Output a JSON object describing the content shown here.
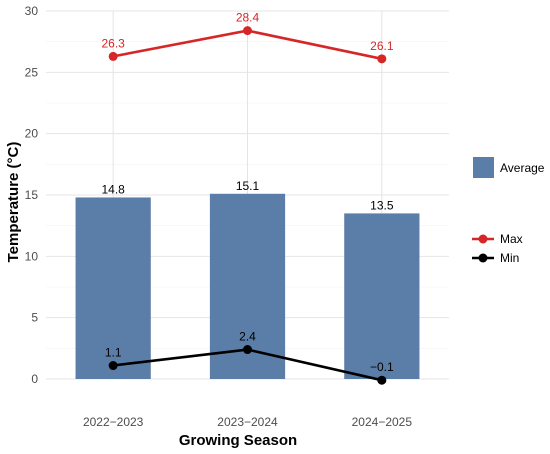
{
  "chart_data": {
    "type": "bar",
    "xlabel": "Growing Season",
    "ylabel": "Temperature (°C)",
    "ylim": [
      0,
      30
    ],
    "yticks": [
      0,
      5,
      10,
      15,
      20,
      25,
      30
    ],
    "grid": true,
    "legend_position": "right",
    "categories": [
      "2022−2023",
      "2023−2024",
      "2024−2025"
    ],
    "series": [
      {
        "name": "Average",
        "type": "bar",
        "color": "#5b7ea8",
        "values": [
          14.8,
          15.1,
          13.5
        ],
        "labels": [
          "14.8",
          "15.1",
          "13.5"
        ]
      },
      {
        "name": "Max",
        "type": "line",
        "color": "#d62728",
        "values": [
          26.3,
          28.4,
          26.1
        ],
        "labels": [
          "26.3",
          "28.4",
          "26.1"
        ]
      },
      {
        "name": "Min",
        "type": "line",
        "color": "#000000",
        "values": [
          1.1,
          2.4,
          -0.1
        ],
        "labels": [
          "1.1",
          "2.4",
          "−0.1"
        ]
      }
    ]
  }
}
